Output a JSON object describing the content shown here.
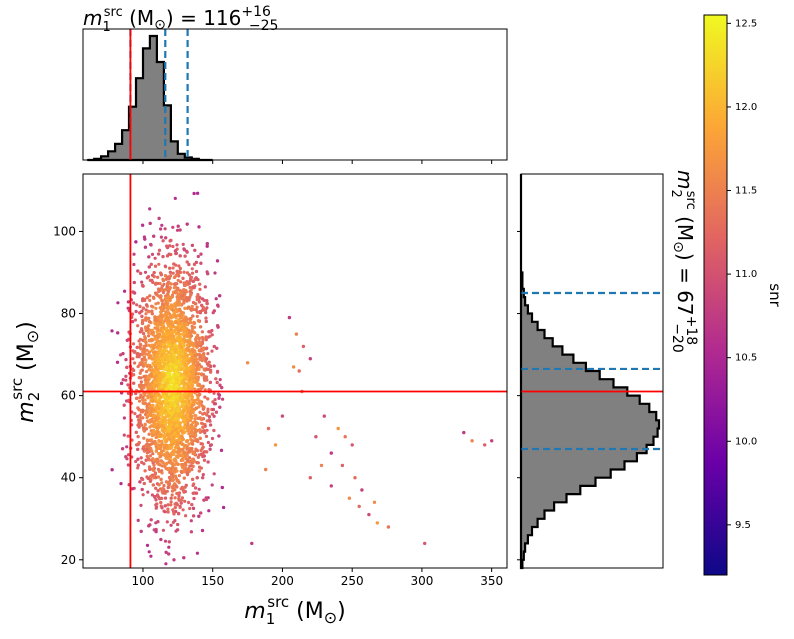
{
  "chart_data": [
    {
      "type": "scatter",
      "panel": "joint",
      "xlabel": "m1src (M☉)",
      "ylabel": "m2src (M☉)",
      "xlim": [
        57,
        361
      ],
      "ylim": [
        18,
        114
      ],
      "xticks": [
        100,
        150,
        200,
        250,
        300,
        350
      ],
      "yticks": [
        20,
        40,
        60,
        80,
        100
      ],
      "x_tick_labels": [
        "100",
        "150",
        "200",
        "250",
        "300",
        "350"
      ],
      "y_tick_labels": [
        "20",
        "40",
        "60",
        "80",
        "100"
      ],
      "reference_lines": {
        "m1": 91,
        "m2": 61,
        "color": "#ff0000"
      },
      "core": {
        "description_values": "dense sample cloud in data units",
        "m1_center": 121,
        "m1_spread": 13,
        "m2_center": 63,
        "m2_spread": 14,
        "m1_min": 60,
        "m2_min": 19,
        "m2_max": 110
      },
      "outliers": [
        [
          205,
          79
        ],
        [
          210,
          75
        ],
        [
          215,
          72
        ],
        [
          220,
          69
        ],
        [
          208,
          67
        ],
        [
          212,
          66
        ],
        [
          230,
          55
        ],
        [
          240,
          52
        ],
        [
          245,
          50
        ],
        [
          250,
          48
        ],
        [
          235,
          46
        ],
        [
          228,
          43
        ],
        [
          220,
          40
        ],
        [
          235,
          38
        ],
        [
          248,
          35
        ],
        [
          255,
          33
        ],
        [
          262,
          31
        ],
        [
          268,
          29
        ],
        [
          276,
          28
        ],
        [
          302,
          24
        ],
        [
          330,
          51
        ],
        [
          336,
          49
        ],
        [
          345,
          48
        ],
        [
          350,
          49
        ],
        [
          175,
          68
        ],
        [
          190,
          52
        ],
        [
          200,
          55
        ],
        [
          195,
          48
        ],
        [
          214,
          61
        ],
        [
          224,
          50
        ],
        [
          178,
          24
        ],
        [
          188,
          42
        ],
        [
          243,
          43
        ],
        [
          257,
          37
        ],
        [
          266,
          34
        ],
        [
          252,
          40
        ]
      ]
    },
    {
      "type": "histogram",
      "panel": "top-marginal",
      "title": "m1src (M☉) = 116 +16 −25",
      "title_value": "116",
      "title_upper": "+16",
      "title_lower": "−25",
      "bins_start": 60,
      "bin_width": 5,
      "counts": [
        0.0,
        0.01,
        0.03,
        0.07,
        0.13,
        0.24,
        0.43,
        0.66,
        0.9,
        1.0,
        0.79,
        0.44,
        0.15,
        0.05,
        0.02,
        0.01,
        0.0,
        0.0
      ],
      "quantiles": [
        91,
        116,
        132
      ],
      "reference_line": 91
    },
    {
      "type": "histogram",
      "panel": "right-marginal",
      "orientation": "horizontal",
      "title": "m2src (M☉) = 67 +18 −20",
      "title_value": "67",
      "title_upper": "+18",
      "title_lower": "−20",
      "bins_start": 18,
      "bin_width": 2,
      "counts": [
        0.01,
        0.02,
        0.03,
        0.05,
        0.08,
        0.12,
        0.17,
        0.24,
        0.33,
        0.43,
        0.54,
        0.65,
        0.75,
        0.84,
        0.91,
        0.96,
        0.99,
        1.0,
        0.98,
        0.93,
        0.86,
        0.77,
        0.67,
        0.57,
        0.47,
        0.38,
        0.3,
        0.23,
        0.17,
        0.12,
        0.08,
        0.05,
        0.03,
        0.02,
        0.01,
        0.01,
        0.0,
        0.0,
        0.0,
        0.0,
        0.0,
        0.0,
        0.0,
        0.0,
        0.0,
        0.0,
        0.0,
        0.0
      ],
      "quantiles": [
        47,
        66.5,
        85
      ],
      "reference_line": 61
    },
    {
      "type": "colorbar",
      "label": "snr",
      "range": [
        9.2,
        12.55
      ],
      "ticks": [
        9.5,
        10.0,
        10.5,
        11.0,
        11.5,
        12.0,
        12.5
      ],
      "tick_labels": [
        "9.5",
        "10.0",
        "10.5",
        "11.0",
        "11.5",
        "12.0",
        "12.5"
      ],
      "colormap": [
        "#0d0887",
        "#6a00a8",
        "#b12a90",
        "#e16462",
        "#fca636",
        "#f0f921"
      ]
    }
  ]
}
